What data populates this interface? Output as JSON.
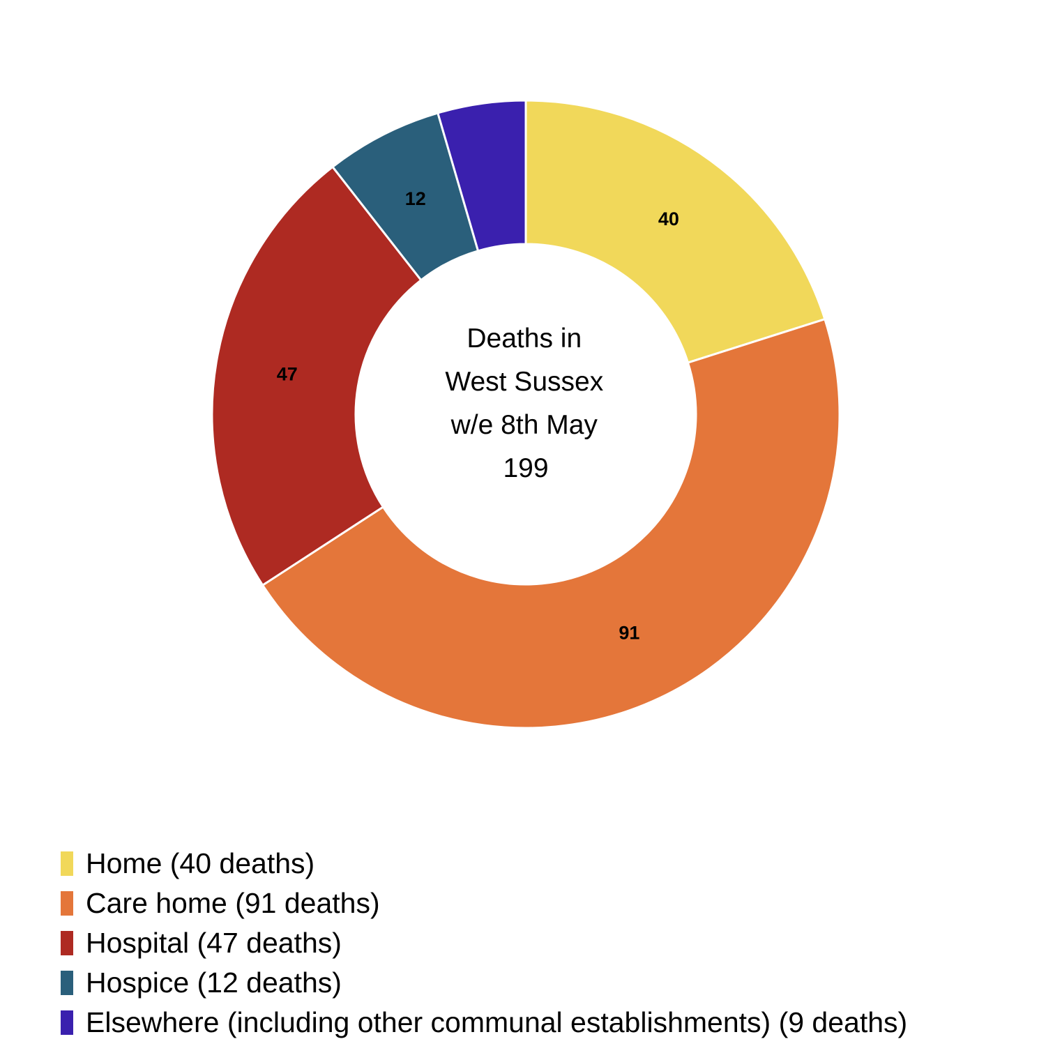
{
  "chart_data": {
    "type": "pie",
    "center_text": [
      "Deaths in",
      "West Sussex",
      "w/e 8th May",
      "199"
    ],
    "slices": [
      {
        "label": "Home",
        "value": 40,
        "color": "#F1D85A",
        "legend": "Home (40 deaths)",
        "data_label": "40"
      },
      {
        "label": "Care home",
        "value": 91,
        "color": "#E4763A",
        "legend": "Care home (91 deaths)",
        "data_label": "91"
      },
      {
        "label": "Hospital",
        "value": 47,
        "color": "#AE2A22",
        "legend": "Hospital (47 deaths)",
        "data_label": "47"
      },
      {
        "label": "Hospice",
        "value": 12,
        "color": "#2A5F7B",
        "legend": "Hospice (12 deaths)",
        "data_label": "12"
      },
      {
        "label": "Elsewhere (including other communal establishments)",
        "value": 9,
        "color": "#3A20AE",
        "legend": "Elsewhere (including other communal establishments) (9 deaths)",
        "data_label": ""
      }
    ],
    "legend_position": "bottom-left"
  }
}
